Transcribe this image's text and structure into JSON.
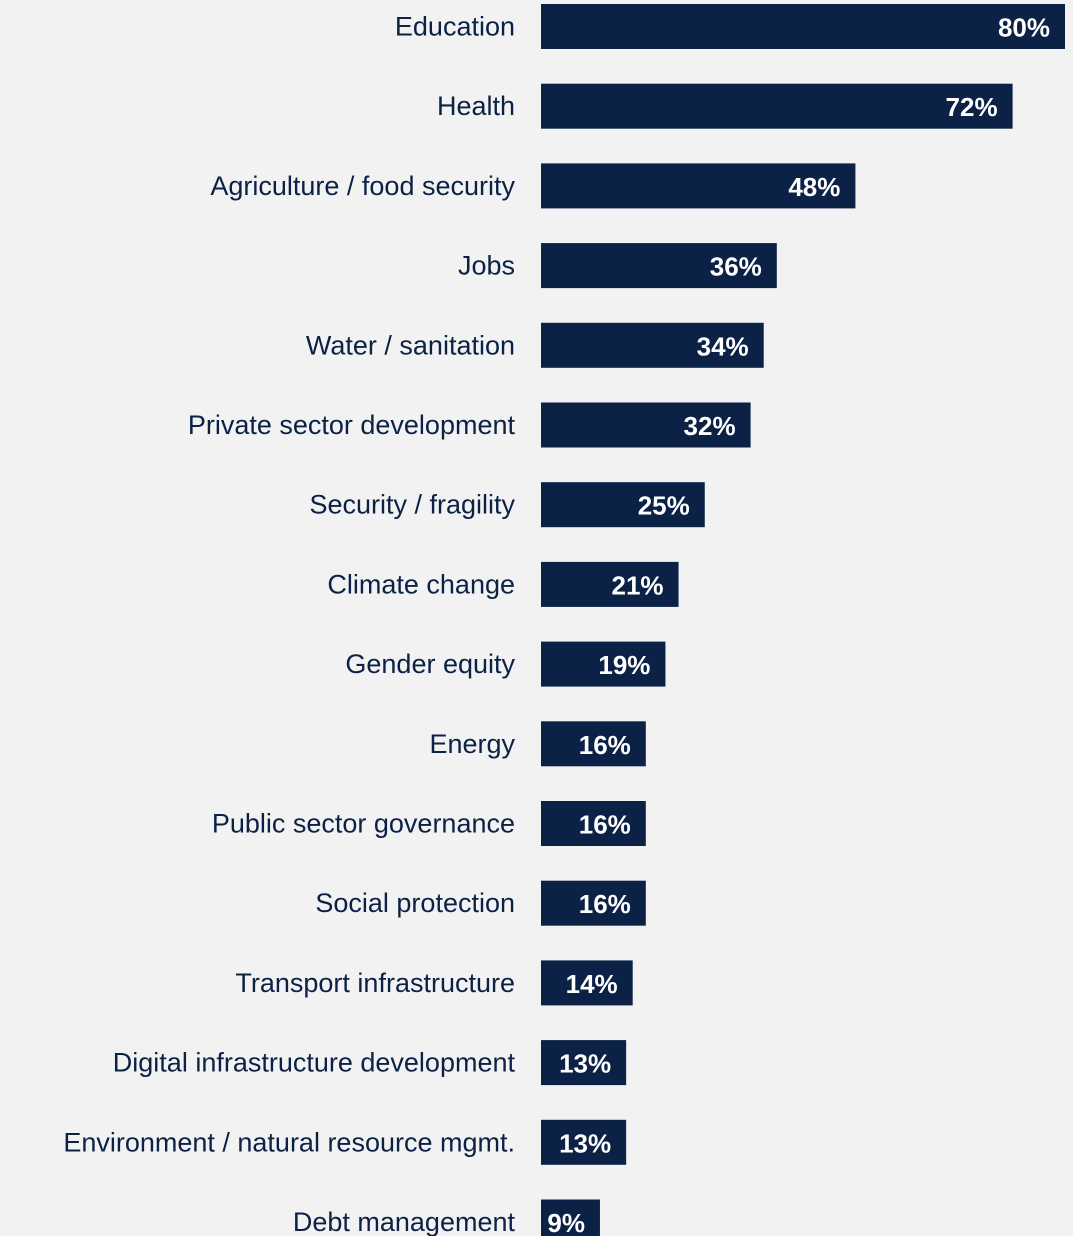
{
  "chart_data": {
    "type": "bar",
    "orientation": "horizontal",
    "categories": [
      "Education",
      "Health",
      "Agriculture / food security",
      "Jobs",
      "Water / sanitation",
      "Private sector development",
      "Security / fragility",
      "Climate change",
      "Gender equity",
      "Energy",
      "Public sector governance",
      "Social protection",
      "Transport infrastructure",
      "Digital infrastructure development",
      "Environment / natural resource mgmt.",
      "Debt management"
    ],
    "values": [
      80,
      72,
      48,
      36,
      34,
      32,
      25,
      21,
      19,
      16,
      16,
      16,
      14,
      13,
      13,
      9
    ],
    "value_labels": [
      "80%",
      "72%",
      "48%",
      "36%",
      "34%",
      "32%",
      "25%",
      "21%",
      "19%",
      "16%",
      "16%",
      "16%",
      "14%",
      "13%",
      "13%",
      "9%"
    ],
    "unit": "%",
    "title": "",
    "xlabel": "",
    "ylabel": "",
    "xlim": [
      0,
      80
    ],
    "grid": false,
    "legend": "none",
    "colors": {
      "bar": "#0b2146",
      "bar_label": "#ffffff",
      "category_label": "#0b2146",
      "background": "#f2f2f2"
    }
  }
}
